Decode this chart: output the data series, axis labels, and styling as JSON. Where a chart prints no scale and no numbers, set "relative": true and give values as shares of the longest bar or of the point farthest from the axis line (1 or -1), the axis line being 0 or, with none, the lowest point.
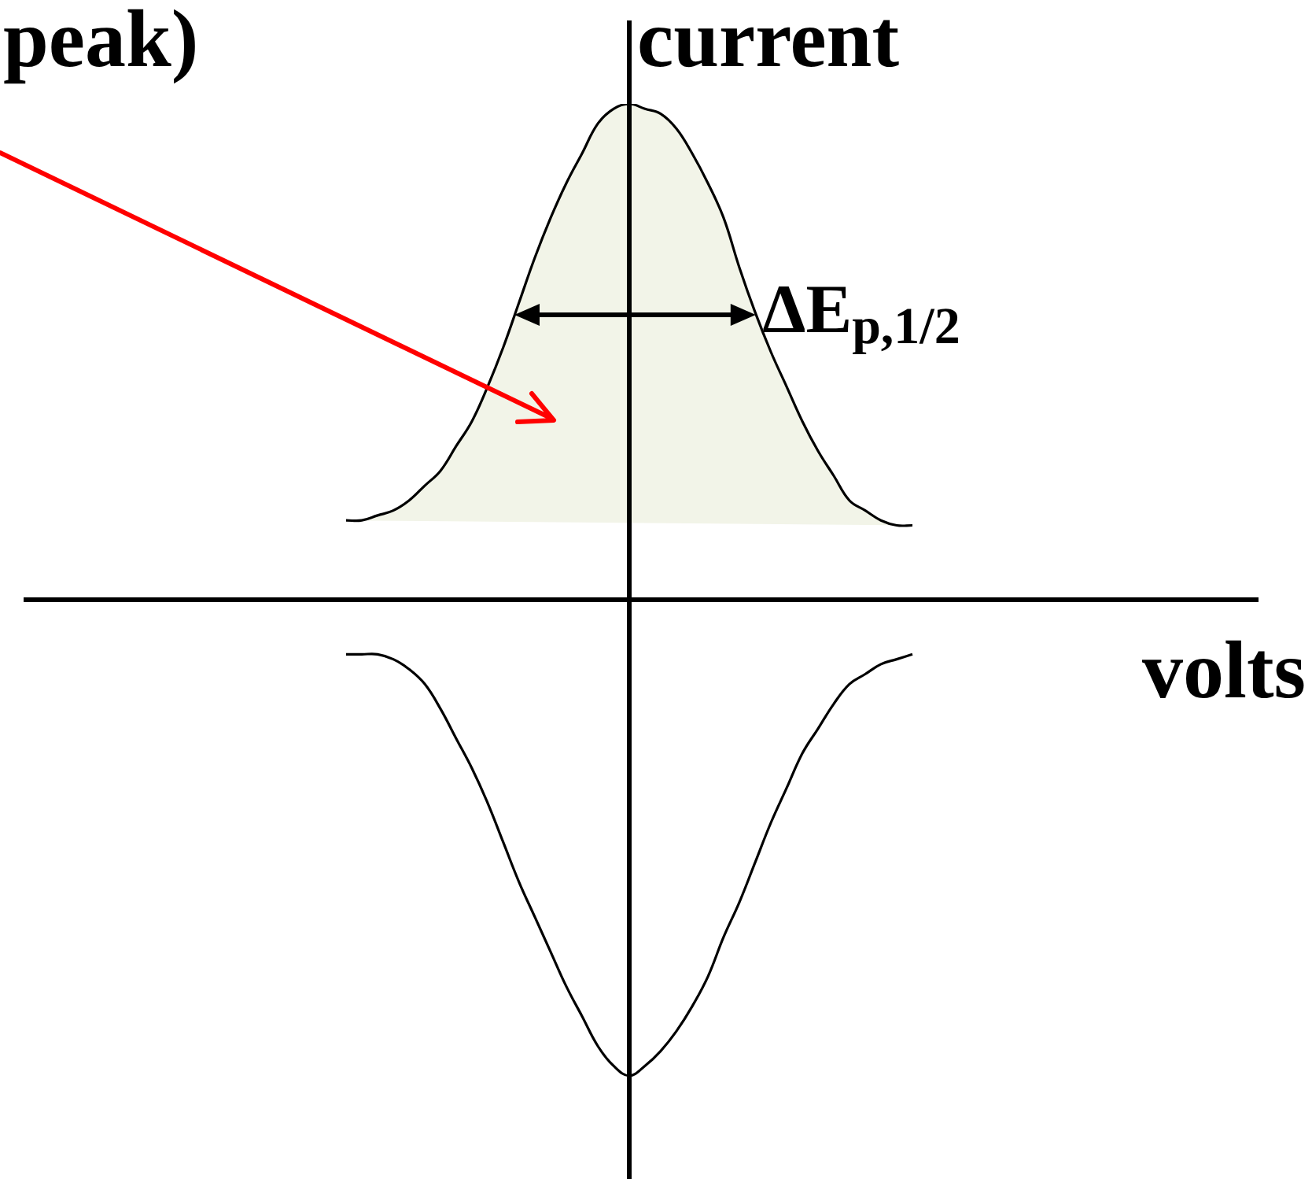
{
  "chart_data": {
    "type": "line",
    "xlabel": "volts",
    "ylabel": "current",
    "relative": true,
    "tick_labels": false,
    "marker": "none",
    "categories": [
      null,
      null,
      null,
      null,
      null,
      null,
      null,
      null,
      null,
      null,
      null,
      null,
      null,
      null,
      null,
      null,
      null,
      null,
      null,
      null,
      null,
      null,
      null,
      null,
      null,
      null,
      null,
      null,
      null,
      null,
      null,
      null,
      null,
      null,
      null,
      null,
      null
    ],
    "series": [
      {
        "type": "area",
        "color": "#f2f4e8",
        "values": [
          0.16,
          0.16,
          0.17,
          0.18,
          0.2,
          0.23,
          0.26,
          0.31,
          0.36,
          0.43,
          0.51,
          0.6,
          0.69,
          0.77,
          0.84,
          0.9,
          0.96,
          0.99,
          1,
          0.99,
          0.98,
          0.95,
          0.9,
          0.84,
          0.77,
          0.67,
          0.58,
          0.5,
          0.43,
          0.36,
          0.3,
          0.25,
          0.2,
          0.18,
          0.16,
          0.15,
          0.15
        ]
      },
      {
        "color": "#000000",
        "values": [
          -0.11,
          -0.11,
          -0.11,
          -0.12,
          -0.14,
          -0.17,
          -0.22,
          -0.28,
          -0.34,
          -0.41,
          -0.49,
          -0.57,
          -0.64,
          -0.71,
          -0.78,
          -0.84,
          -0.9,
          -0.94,
          -0.96,
          -0.94,
          -0.91,
          -0.87,
          -0.82,
          -0.76,
          -0.68,
          -0.61,
          -0.53,
          -0.45,
          -0.38,
          -0.31,
          -0.26,
          -0.21,
          -0.17,
          -0.15,
          -0.13,
          -0.12,
          -0.11
        ]
      }
    ],
    "annotations": [
      "peak)",
      "ΔE$_{p,1/2}$"
    ]
  }
}
